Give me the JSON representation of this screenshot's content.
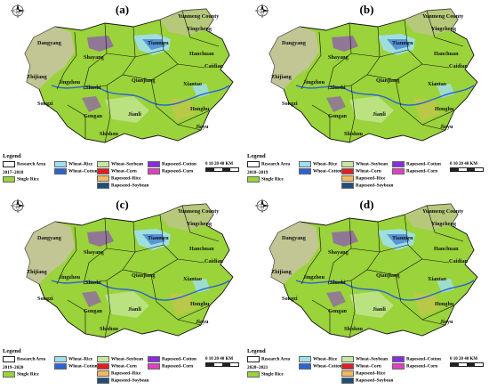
{
  "panels": [
    {
      "label": "(a)",
      "period": "2017–2018",
      "scale_ticks": "0  10  20      40 KM"
    },
    {
      "label": "(b)",
      "period": "2018–2019",
      "scale_ticks": "0  10  20      40 KM"
    },
    {
      "label": "(c)",
      "period": "2019–2020",
      "scale_ticks": "0  10  20      40 KM"
    },
    {
      "label": "(d)",
      "period": "2020–2021",
      "scale_ticks": "0  10  20      40 KM"
    }
  ],
  "legend": {
    "title": "Legend",
    "items": [
      {
        "label": "Research Area",
        "color": "#ffffff"
      },
      {
        "label": "Single Rice",
        "color": "#9ad33a"
      },
      {
        "label": "Wheat–Rice",
        "color": "#9fe0f0"
      },
      {
        "label": "Wheat–Cotton",
        "color": "#2a63d6"
      },
      {
        "label": "Wheat–Soybean",
        "color": "#c8e8a0"
      },
      {
        "label": "Wheat–Corn",
        "color": "#e02020"
      },
      {
        "label": "Rapeseed–Rice",
        "color": "#f4b860"
      },
      {
        "label": "Rapeseed–Soybean",
        "color": "#1f4e79"
      },
      {
        "label": "Rapeseed–Cotton",
        "color": "#8a2be2"
      },
      {
        "label": "Rapeseed–Corn",
        "color": "#e040c0"
      }
    ]
  },
  "cities": [
    "Yunmeng County",
    "Yingcheng",
    "Dangyang",
    "Tianmen",
    "Hanchuan",
    "Shayang",
    "Caidian",
    "Zhijiang",
    "Jingzhou",
    "Qianjiang",
    "Xiantao",
    "Shashi",
    "Songzi",
    "Gongan",
    "Jianli",
    "Honghu",
    "Jiayu",
    "Shishou"
  ]
}
